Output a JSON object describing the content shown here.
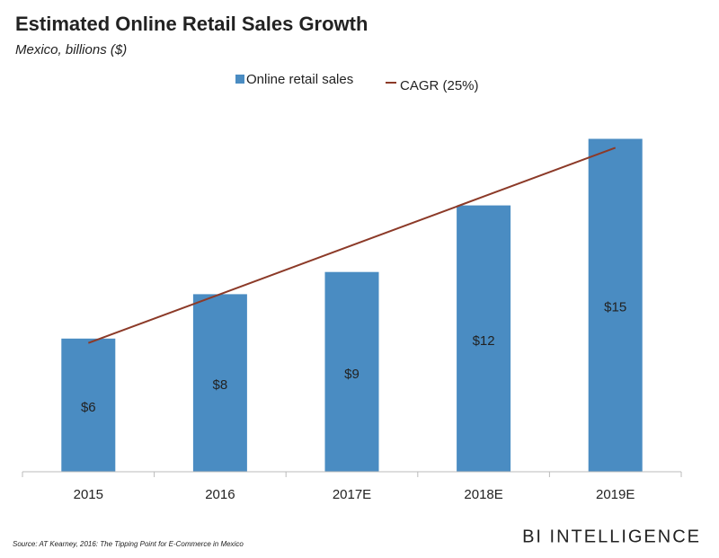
{
  "chart_data": {
    "type": "bar",
    "title": "Estimated Online Retail Sales Growth",
    "subtitle": "Mexico, billions ($)",
    "categories": [
      "2015",
      "2016",
      "2017E",
      "2018E",
      "2019E"
    ],
    "series": [
      {
        "name": "Online retail sales",
        "color": "#4a8cc2",
        "values": [
          6,
          8,
          9,
          12,
          15
        ],
        "value_labels": [
          "$6",
          "$8",
          "$9",
          "$12",
          "$15"
        ]
      },
      {
        "name": "CAGR (25%)",
        "type": "line",
        "color": "#8c3a28",
        "values": [
          5.8,
          8.0,
          10.2,
          12.4,
          14.6
        ]
      }
    ],
    "source": "Source: AT Kearney, 2016: The Tipping Point for E-Commerce in Mexico",
    "brand": "BI INTELLIGENCE"
  }
}
